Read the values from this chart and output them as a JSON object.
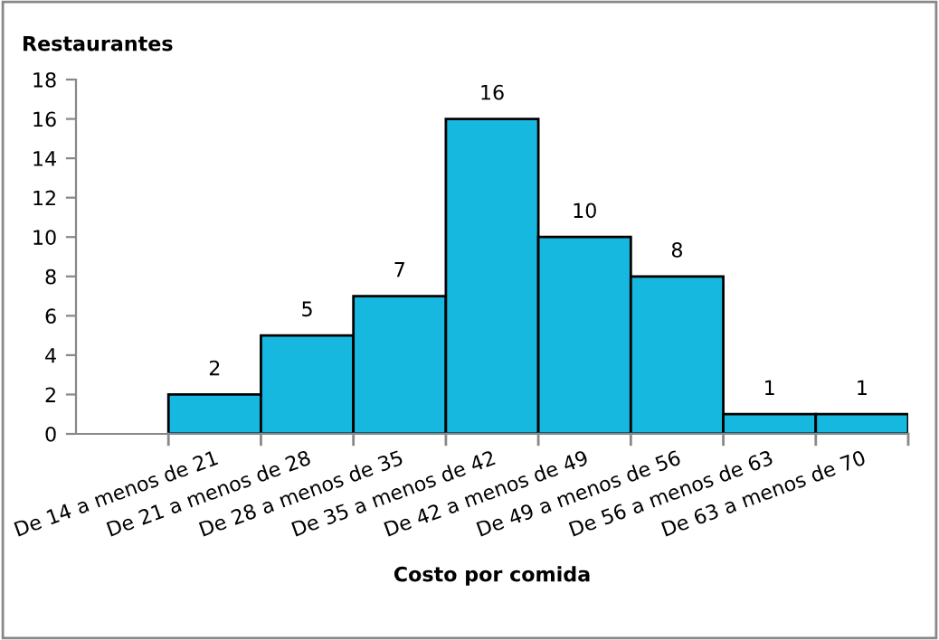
{
  "chart_data": {
    "type": "bar",
    "ylabel": "Restaurantes",
    "xlabel": "Costo por comida",
    "categories": [
      null,
      "De 14 a menos de 21",
      "De 21 a menos de 28",
      "De 28 a menos de 35",
      "De 35 a menos de 42",
      "De 42 a menos de 49",
      "De 49 a menos de 56",
      "De 56 a menos de 63",
      "De 63 a menos de 70"
    ],
    "values": [
      null,
      2,
      5,
      7,
      16,
      10,
      8,
      1,
      1
    ],
    "color": "#16b8e0",
    "ylim": [
      0,
      18
    ],
    "yticks": [
      0,
      2,
      4,
      6,
      8,
      10,
      12,
      14,
      16,
      18
    ],
    "data_labels": true,
    "grid": false,
    "legend": false
  }
}
